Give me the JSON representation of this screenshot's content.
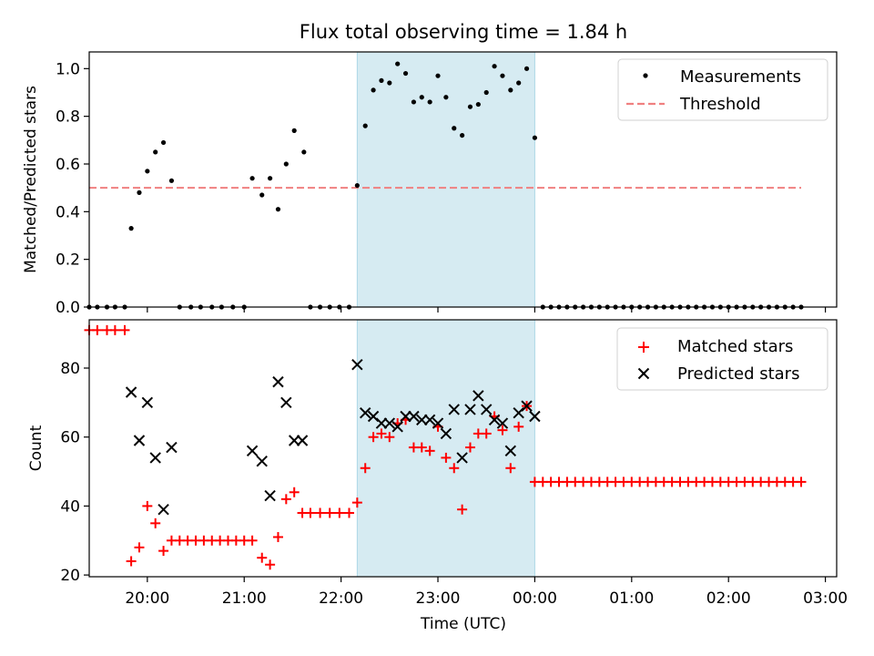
{
  "title": "Flux total observing time = 1.84 h",
  "colors": {
    "measurement": "#000000",
    "threshold": "#f08080",
    "matched": "#ff0000",
    "predicted": "#000000",
    "window": "#add8e6"
  },
  "chart_data": [
    {
      "type": "scatter",
      "panel": "top",
      "xlabel": "",
      "ylabel": "Matched/Predicted stars",
      "xlim": [
        "19:24",
        "03:07"
      ],
      "ylim": [
        0,
        1.07
      ],
      "yticks": [
        "0.0",
        "0.2",
        "0.4",
        "0.6",
        "0.8",
        "1.0"
      ],
      "legend": "top-right",
      "grid": false,
      "shaded_interval": [
        "22:10",
        "00:00"
      ],
      "series": [
        {
          "name": "Measurements",
          "style": "dots",
          "points": [
            [
              "19:24",
              0
            ],
            [
              "19:29",
              0
            ],
            [
              "19:35",
              0
            ],
            [
              "19:40",
              0
            ],
            [
              "19:46",
              0
            ],
            [
              "19:50",
              0.33
            ],
            [
              "19:55",
              0.48
            ],
            [
              "20:00",
              0.57
            ],
            [
              "20:05",
              0.65
            ],
            [
              "20:10",
              0.69
            ],
            [
              "20:15",
              0.53
            ],
            [
              "20:20",
              0
            ],
            [
              "20:27",
              0
            ],
            [
              "20:33",
              0
            ],
            [
              "20:40",
              0
            ],
            [
              "20:46",
              0
            ],
            [
              "20:53",
              0
            ],
            [
              "21:00",
              0
            ],
            [
              "21:05",
              0.54
            ],
            [
              "21:11",
              0.47
            ],
            [
              "21:16",
              0.54
            ],
            [
              "21:21",
              0.41
            ],
            [
              "21:26",
              0.6
            ],
            [
              "21:31",
              0.74
            ],
            [
              "21:37",
              0.65
            ],
            [
              "21:41",
              0
            ],
            [
              "21:47",
              0
            ],
            [
              "21:53",
              0
            ],
            [
              "21:59",
              0
            ],
            [
              "22:05",
              0
            ],
            [
              "22:10",
              0.51
            ],
            [
              "22:15",
              0.76
            ],
            [
              "22:20",
              0.91
            ],
            [
              "22:25",
              0.95
            ],
            [
              "22:30",
              0.94
            ],
            [
              "22:35",
              1.02
            ],
            [
              "22:40",
              0.98
            ],
            [
              "22:45",
              0.86
            ],
            [
              "22:50",
              0.88
            ],
            [
              "22:55",
              0.86
            ],
            [
              "23:00",
              0.97
            ],
            [
              "23:05",
              0.88
            ],
            [
              "23:10",
              0.75
            ],
            [
              "23:15",
              0.72
            ],
            [
              "23:20",
              0.84
            ],
            [
              "23:25",
              0.85
            ],
            [
              "23:30",
              0.9
            ],
            [
              "23:35",
              1.01
            ],
            [
              "23:40",
              0.97
            ],
            [
              "23:45",
              0.91
            ],
            [
              "23:50",
              0.94
            ],
            [
              "23:55",
              1.0
            ],
            [
              "00:00",
              0.71
            ],
            [
              "00:05",
              0
            ],
            [
              "00:10",
              0
            ],
            [
              "00:15",
              0
            ],
            [
              "00:20",
              0
            ],
            [
              "00:25",
              0
            ],
            [
              "00:30",
              0
            ],
            [
              "00:35",
              0
            ],
            [
              "00:40",
              0
            ],
            [
              "00:45",
              0
            ],
            [
              "00:50",
              0
            ],
            [
              "00:55",
              0
            ],
            [
              "01:00",
              0
            ],
            [
              "01:05",
              0
            ],
            [
              "01:10",
              0
            ],
            [
              "01:15",
              0
            ],
            [
              "01:20",
              0
            ],
            [
              "01:25",
              0
            ],
            [
              "01:30",
              0
            ],
            [
              "01:35",
              0
            ],
            [
              "01:40",
              0
            ],
            [
              "01:45",
              0
            ],
            [
              "01:50",
              0
            ],
            [
              "01:55",
              0
            ],
            [
              "02:00",
              0
            ],
            [
              "02:05",
              0
            ],
            [
              "02:10",
              0
            ],
            [
              "02:15",
              0
            ],
            [
              "02:20",
              0
            ],
            [
              "02:25",
              0
            ],
            [
              "02:30",
              0
            ],
            [
              "02:35",
              0
            ],
            [
              "02:40",
              0
            ],
            [
              "02:45",
              0
            ]
          ]
        },
        {
          "name": "Threshold",
          "style": "dashed-line",
          "points": [
            [
              "19:24",
              0.5
            ],
            [
              "02:45",
              0.5
            ]
          ]
        }
      ]
    },
    {
      "type": "scatter",
      "panel": "bottom",
      "xlabel": "Time (UTC)",
      "ylabel": "Count",
      "xlim": [
        "19:24",
        "03:07"
      ],
      "ylim": [
        19.5,
        94
      ],
      "yticks": [
        "20",
        "40",
        "60",
        "80"
      ],
      "xticks": [
        "20:00",
        "21:00",
        "22:00",
        "23:00",
        "00:00",
        "01:00",
        "02:00",
        "03:00"
      ],
      "legend": "top-right",
      "grid": false,
      "shaded_interval": [
        "22:10",
        "00:00"
      ],
      "series": [
        {
          "name": "Matched stars",
          "marker": "plus",
          "points": [
            [
              "19:24",
              91
            ],
            [
              "19:29",
              91
            ],
            [
              "19:35",
              91
            ],
            [
              "19:40",
              91
            ],
            [
              "19:46",
              91
            ],
            [
              "19:50",
              24
            ],
            [
              "19:55",
              28
            ],
            [
              "20:00",
              40
            ],
            [
              "20:05",
              35
            ],
            [
              "20:10",
              27
            ],
            [
              "20:15",
              30
            ],
            [
              "20:20",
              30
            ],
            [
              "20:25",
              30
            ],
            [
              "20:30",
              30
            ],
            [
              "20:35",
              30
            ],
            [
              "20:40",
              30
            ],
            [
              "20:45",
              30
            ],
            [
              "20:50",
              30
            ],
            [
              "20:55",
              30
            ],
            [
              "21:00",
              30
            ],
            [
              "21:05",
              30
            ],
            [
              "21:11",
              25
            ],
            [
              "21:16",
              23
            ],
            [
              "21:21",
              31
            ],
            [
              "21:26",
              42
            ],
            [
              "21:31",
              44
            ],
            [
              "21:36",
              38
            ],
            [
              "21:41",
              38
            ],
            [
              "21:47",
              38
            ],
            [
              "21:53",
              38
            ],
            [
              "21:59",
              38
            ],
            [
              "22:05",
              38
            ],
            [
              "22:10",
              41
            ],
            [
              "22:15",
              51
            ],
            [
              "22:20",
              60
            ],
            [
              "22:25",
              61
            ],
            [
              "22:30",
              60
            ],
            [
              "22:35",
              64
            ],
            [
              "22:40",
              65
            ],
            [
              "22:45",
              57
            ],
            [
              "22:50",
              57
            ],
            [
              "22:55",
              56
            ],
            [
              "23:00",
              63
            ],
            [
              "23:05",
              54
            ],
            [
              "23:10",
              51
            ],
            [
              "23:15",
              39
            ],
            [
              "23:20",
              57
            ],
            [
              "23:25",
              61
            ],
            [
              "23:30",
              61
            ],
            [
              "23:35",
              66
            ],
            [
              "23:40",
              62
            ],
            [
              "23:45",
              51
            ],
            [
              "23:50",
              63
            ],
            [
              "23:55",
              69
            ],
            [
              "00:00",
              47
            ],
            [
              "00:05",
              47
            ],
            [
              "00:10",
              47
            ],
            [
              "00:15",
              47
            ],
            [
              "00:20",
              47
            ],
            [
              "00:25",
              47
            ],
            [
              "00:30",
              47
            ],
            [
              "00:35",
              47
            ],
            [
              "00:40",
              47
            ],
            [
              "00:45",
              47
            ],
            [
              "00:50",
              47
            ],
            [
              "00:55",
              47
            ],
            [
              "01:00",
              47
            ],
            [
              "01:05",
              47
            ],
            [
              "01:10",
              47
            ],
            [
              "01:15",
              47
            ],
            [
              "01:20",
              47
            ],
            [
              "01:25",
              47
            ],
            [
              "01:30",
              47
            ],
            [
              "01:35",
              47
            ],
            [
              "01:40",
              47
            ],
            [
              "01:45",
              47
            ],
            [
              "01:50",
              47
            ],
            [
              "01:55",
              47
            ],
            [
              "02:00",
              47
            ],
            [
              "02:05",
              47
            ],
            [
              "02:10",
              47
            ],
            [
              "02:15",
              47
            ],
            [
              "02:20",
              47
            ],
            [
              "02:25",
              47
            ],
            [
              "02:30",
              47
            ],
            [
              "02:35",
              47
            ],
            [
              "02:40",
              47
            ],
            [
              "02:45",
              47
            ]
          ]
        },
        {
          "name": "Predicted stars",
          "marker": "x",
          "points": [
            [
              "19:50",
              73
            ],
            [
              "19:55",
              59
            ],
            [
              "20:00",
              70
            ],
            [
              "20:05",
              54
            ],
            [
              "20:10",
              39
            ],
            [
              "20:15",
              57
            ],
            [
              "21:05",
              56
            ],
            [
              "21:11",
              53
            ],
            [
              "21:16",
              43
            ],
            [
              "21:21",
              76
            ],
            [
              "21:26",
              70
            ],
            [
              "21:31",
              59
            ],
            [
              "21:36",
              59
            ],
            [
              "22:10",
              81
            ],
            [
              "22:15",
              67
            ],
            [
              "22:20",
              66
            ],
            [
              "22:25",
              64
            ],
            [
              "22:30",
              64
            ],
            [
              "22:35",
              63
            ],
            [
              "22:40",
              66
            ],
            [
              "22:45",
              66
            ],
            [
              "22:50",
              65
            ],
            [
              "22:55",
              65
            ],
            [
              "23:00",
              64
            ],
            [
              "23:05",
              61
            ],
            [
              "23:10",
              68
            ],
            [
              "23:15",
              54
            ],
            [
              "23:20",
              68
            ],
            [
              "23:25",
              72
            ],
            [
              "23:30",
              68
            ],
            [
              "23:35",
              65
            ],
            [
              "23:40",
              64
            ],
            [
              "23:45",
              56
            ],
            [
              "23:50",
              67
            ],
            [
              "23:55",
              69
            ],
            [
              "00:00",
              66
            ]
          ]
        }
      ]
    }
  ]
}
